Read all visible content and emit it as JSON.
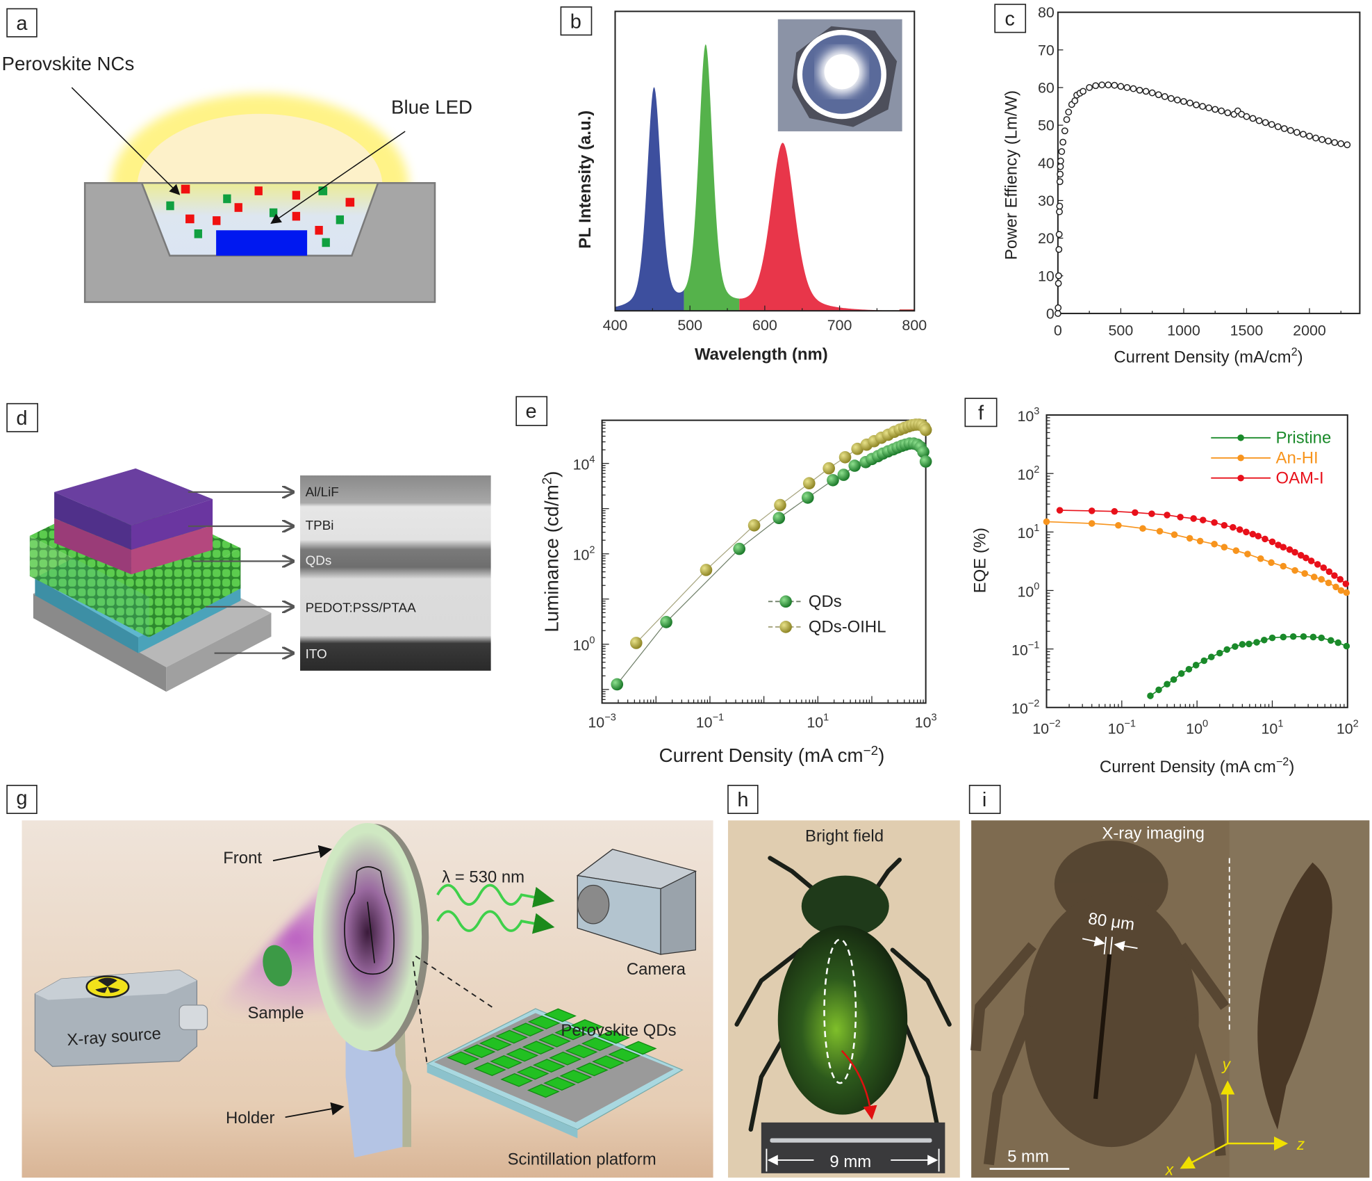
{
  "panels": {
    "a": {
      "label": "a",
      "perovskite_label": "Perovskite NCs",
      "led_label": "Blue LED"
    },
    "b": {
      "label": "b"
    },
    "c": {
      "label": "c"
    },
    "d": {
      "label": "d",
      "layers": [
        "Al/LiF",
        "TPBi",
        "QDs",
        "PEDOT:PSS/PTAA",
        "ITO"
      ]
    },
    "e": {
      "label": "e"
    },
    "f": {
      "label": "f"
    },
    "g": {
      "label": "g",
      "front": "Front",
      "wavelength": "λ = 530 nm",
      "camera": "Camera",
      "sample": "Sample",
      "source": "X-ray source",
      "qds": "Perovskite QDs",
      "holder": "Holder",
      "platform": "Scintillation platform"
    },
    "h": {
      "label": "h",
      "title": "Bright field",
      "scale": "9 mm"
    },
    "i": {
      "label": "i",
      "title": "X-ray imaging",
      "feature": "80 μm",
      "scale": "5 mm",
      "axis_x": "x",
      "axis_y": "y",
      "axis_z": "z"
    }
  },
  "chart_data": [
    {
      "id": "b",
      "type": "area",
      "xlabel": "Wavelength (nm)",
      "ylabel": "PL Intensity (a.u.)",
      "xlim": [
        400,
        800
      ],
      "ylim": [
        0,
        1
      ],
      "x_ticks": [
        400,
        500,
        600,
        700,
        800
      ],
      "x_tick_labels": [
        "400",
        "500",
        "600",
        "700",
        "800"
      ],
      "peaks": [
        {
          "center": 452,
          "height": 0.74,
          "fwhm": 22,
          "color": "#3d4f9e"
        },
        {
          "center": 521,
          "height": 0.88,
          "fwhm": 22,
          "color": "#55b24b"
        },
        {
          "center": 624,
          "height": 0.56,
          "fwhm": 38,
          "color": "#e8364a"
        }
      ],
      "region_boundaries": [
        492,
        566
      ],
      "inset": "white LED photo"
    },
    {
      "id": "c",
      "type": "scatter",
      "xlabel": "Current Density (mA/cm2)",
      "ylabel": "Power Effiency (Lm/W)",
      "xlim": [
        0,
        2400
      ],
      "ylim": [
        0,
        80
      ],
      "x_ticks": [
        0,
        500,
        1000,
        1500,
        2000
      ],
      "x_tick_labels": [
        "0",
        "500",
        "1000",
        "1500",
        "2000"
      ],
      "y_ticks": [
        0,
        10,
        20,
        30,
        40,
        50,
        60,
        70,
        80
      ],
      "y_tick_labels": [
        "0",
        "10",
        "20",
        "30",
        "40",
        "50",
        "60",
        "70",
        "80"
      ],
      "x": [
        0,
        2,
        4,
        6,
        8,
        10,
        12,
        14,
        16,
        18,
        20,
        22,
        30,
        40,
        55,
        70,
        85,
        110,
        135,
        150,
        175,
        200,
        250,
        300,
        350,
        400,
        450,
        500,
        550,
        600,
        650,
        700,
        750,
        800,
        850,
        900,
        950,
        1000,
        1050,
        1100,
        1150,
        1200,
        1250,
        1300,
        1350,
        1400,
        1430,
        1460,
        1500,
        1550,
        1600,
        1650,
        1700,
        1750,
        1800,
        1850,
        1900,
        1950,
        2000,
        2050,
        2100,
        2150,
        2200,
        2250,
        2300
      ],
      "y": [
        0,
        1.5,
        8,
        10,
        17,
        21,
        27,
        28.5,
        35,
        37,
        39,
        40.5,
        43,
        45.5,
        48.5,
        51.5,
        53.5,
        55.5,
        56.5,
        58,
        58.5,
        59,
        60,
        60.5,
        60.7,
        60.7,
        60.6,
        60.3,
        60,
        59.7,
        59.3,
        59,
        58.6,
        58.1,
        57.6,
        57.1,
        56.7,
        56.3,
        55.9,
        55.4,
        55,
        54.6,
        54.2,
        53.8,
        53.3,
        52.9,
        53.8,
        52.9,
        52.3,
        51.8,
        51.2,
        50.7,
        50.2,
        49.6,
        49.1,
        48.6,
        48.1,
        47.6,
        47.1,
        46.6,
        46.2,
        45.8,
        45.4,
        45.1,
        44.8
      ]
    },
    {
      "id": "e",
      "type": "scatter",
      "xscale": "log",
      "yscale": "log",
      "xlabel": "Current Density (mA cm^−2)",
      "ylabel": "Luminance (cd/m^2)",
      "xlim": [
        0.001,
        1000
      ],
      "ylim": [
        0.05,
        90000
      ],
      "x_ticks": [
        0.001,
        0.1,
        10,
        1000
      ],
      "x_tick_labels": [
        "10^−3",
        "10^−1",
        "10^1",
        "10^3"
      ],
      "y_ticks": [
        1,
        100,
        10000
      ],
      "y_tick_labels": [
        "10^0",
        "10^2",
        "10^4"
      ],
      "legend_position": "center-right",
      "series": [
        {
          "name": "QDs",
          "color": "#2a9a3a",
          "x": [
            0.0019,
            0.0155,
            0.35,
            1.9,
            6.5,
            19,
            30,
            48,
            77,
            100,
            130,
            160,
            200,
            250,
            300,
            360,
            420,
            500,
            600,
            700,
            800,
            900,
            1000
          ],
          "y": [
            0.13,
            3.1,
            129,
            620,
            1750,
            4260,
            5600,
            8900,
            10700,
            12500,
            14500,
            16500,
            18500,
            20500,
            22500,
            24500,
            26000,
            27500,
            27500,
            26000,
            23000,
            18000,
            11000
          ]
        },
        {
          "name": "QDs-OIHL",
          "color": "#b3a93a",
          "x": [
            0.0043,
            0.085,
            0.66,
            2.0,
            6.9,
            16,
            32,
            54,
            80,
            110,
            150,
            200,
            260,
            330,
            400,
            480,
            560,
            650,
            750,
            850,
            950,
            1000
          ],
          "y": [
            1.07,
            44,
            427,
            1200,
            3640,
            7800,
            13700,
            21000,
            26000,
            31000,
            37000,
            43000,
            50000,
            56000,
            61000,
            66000,
            70000,
            72000,
            72000,
            70000,
            62000,
            55000
          ]
        }
      ]
    },
    {
      "id": "f",
      "type": "line",
      "xscale": "log",
      "yscale": "log",
      "xlabel": "Current Density (mA cm^−2)",
      "ylabel": "EQE (%)",
      "xlim": [
        0.01,
        100
      ],
      "ylim": [
        0.01,
        1000
      ],
      "x_ticks": [
        0.01,
        0.1,
        1,
        10,
        100
      ],
      "x_tick_labels": [
        "10^−2",
        "10^−1",
        "10^0",
        "10^1",
        "10^2"
      ],
      "y_ticks": [
        0.01,
        0.1,
        1,
        10,
        100,
        1000
      ],
      "y_tick_labels": [
        "10^−2",
        "10^−1",
        "10^0",
        "10^1",
        "10^2",
        "10^3"
      ],
      "legend_position": "top-right",
      "series": [
        {
          "name": "Pristine",
          "color": "#1a8a2a",
          "x": [
            0.24,
            0.31,
            0.4,
            0.49,
            0.62,
            0.78,
            0.97,
            1.24,
            1.55,
            2.0,
            2.5,
            3.2,
            4.0,
            4.9,
            6.2,
            7.8,
            10,
            14,
            19,
            26,
            35,
            45,
            60,
            75,
            97
          ],
          "y": [
            0.0158,
            0.02,
            0.025,
            0.03,
            0.038,
            0.045,
            0.053,
            0.063,
            0.073,
            0.085,
            0.098,
            0.11,
            0.12,
            0.122,
            0.13,
            0.142,
            0.155,
            0.16,
            0.163,
            0.163,
            0.16,
            0.155,
            0.14,
            0.128,
            0.112
          ]
        },
        {
          "name": "An-HI",
          "color": "#f7941d",
          "x": [
            0.01,
            0.04,
            0.09,
            0.19,
            0.32,
            0.5,
            0.8,
            1.1,
            1.7,
            2.3,
            3.3,
            4.7,
            7,
            9.7,
            14,
            20,
            27,
            36,
            45,
            56,
            70,
            82,
            97
          ],
          "y": [
            15,
            14,
            13,
            11.5,
            10.3,
            9,
            7.8,
            7,
            6.2,
            5.5,
            4.8,
            4.2,
            3.5,
            3,
            2.6,
            2.2,
            1.95,
            1.7,
            1.55,
            1.35,
            1.15,
            1.0,
            0.92
          ]
        },
        {
          "name": "OAM-I",
          "color": "#e8101a",
          "x": [
            0.015,
            0.04,
            0.08,
            0.15,
            0.25,
            0.4,
            0.6,
            0.9,
            1.2,
            1.7,
            2.3,
            3,
            3.7,
            4.5,
            5.5,
            6.5,
            8,
            10,
            12,
            14,
            17,
            20,
            24,
            28,
            33,
            40,
            48,
            57,
            67,
            80,
            95
          ],
          "y": [
            23.5,
            23,
            22.5,
            21.5,
            20.5,
            19.5,
            18,
            17,
            16,
            14.5,
            13,
            12,
            11,
            10,
            9.2,
            8.5,
            7.6,
            6.8,
            6.0,
            5.5,
            5.0,
            4.5,
            4.0,
            3.6,
            3.2,
            2.8,
            2.45,
            2.1,
            1.8,
            1.55,
            1.3
          ]
        }
      ]
    }
  ]
}
